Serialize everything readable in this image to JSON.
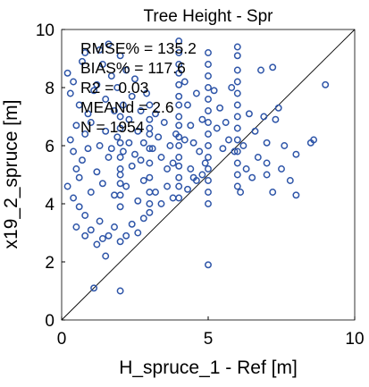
{
  "chart_data": {
    "type": "scatter",
    "title": "Tree Height - Spr",
    "xlabel": "H_spruce_1 - Ref [m]",
    "ylabel": "x19_2_spruce [m]",
    "xlim": [
      0,
      10
    ],
    "ylim": [
      0,
      10
    ],
    "xticks": [
      "0",
      "5",
      "10"
    ],
    "yticks": [
      "0",
      "2",
      "4",
      "6",
      "8",
      "10"
    ],
    "grid": false,
    "reference_line": "1:1",
    "marker_color": "#2E55A8",
    "stats": [
      "RMSE% = 135.2",
      "BIAS% = 117.6",
      "R2 = 0.03",
      "MEANd = 2.6",
      "N = 1954"
    ],
    "series": [
      {
        "points": [
          [
            0.2,
            8.5
          ],
          [
            0.3,
            7.8
          ],
          [
            0.4,
            8.2
          ],
          [
            0.5,
            6.7
          ],
          [
            0.6,
            7.4
          ],
          [
            0.7,
            8.9
          ],
          [
            0.8,
            9.2
          ],
          [
            0.9,
            7.1
          ],
          [
            0.3,
            6.2
          ],
          [
            0.4,
            5.8
          ],
          [
            0.5,
            5.2
          ],
          [
            0.6,
            4.9
          ],
          [
            0.7,
            5.5
          ],
          [
            0.8,
            6.4
          ],
          [
            0.9,
            5.9
          ],
          [
            1.0,
            6.8
          ],
          [
            0.2,
            4.6
          ],
          [
            0.4,
            4.2
          ],
          [
            0.6,
            3.9
          ],
          [
            0.8,
            3.6
          ],
          [
            1.0,
            4.4
          ],
          [
            0.5,
            3.2
          ],
          [
            0.8,
            2.9
          ],
          [
            1.0,
            3.1
          ],
          [
            1.1,
            1.1
          ],
          [
            1.2,
            2.6
          ],
          [
            1.3,
            3.4
          ],
          [
            1.4,
            2.8
          ],
          [
            1.5,
            2.2
          ],
          [
            1.6,
            2.9
          ],
          [
            1.8,
            3.2
          ],
          [
            2.0,
            2.7
          ],
          [
            2.0,
            1.0
          ],
          [
            2.2,
            2.9
          ],
          [
            2.4,
            3.3
          ],
          [
            2.6,
            3.0
          ],
          [
            2.8,
            3.5
          ],
          [
            3.0,
            3.7
          ],
          [
            1.1,
            7.9
          ],
          [
            1.2,
            8.1
          ],
          [
            1.3,
            9.3
          ],
          [
            1.4,
            8.8
          ],
          [
            1.5,
            7.6
          ],
          [
            1.6,
            9.5
          ],
          [
            1.7,
            8.4
          ],
          [
            1.8,
            7.2
          ],
          [
            1.9,
            8.0
          ],
          [
            2.0,
            9.1
          ],
          [
            2.1,
            7.4
          ],
          [
            2.2,
            8.6
          ],
          [
            2.3,
            6.9
          ],
          [
            2.4,
            7.7
          ],
          [
            2.5,
            8.3
          ],
          [
            2.6,
            6.5
          ],
          [
            2.7,
            7.2
          ],
          [
            2.8,
            6.1
          ],
          [
            2.9,
            7.8
          ],
          [
            3.0,
            6.6
          ],
          [
            3.1,
            5.9
          ],
          [
            3.2,
            7.1
          ],
          [
            3.3,
            6.3
          ],
          [
            3.4,
            5.6
          ],
          [
            3.5,
            6.8
          ],
          [
            3.6,
            5.2
          ],
          [
            3.7,
            6.0
          ],
          [
            3.8,
            5.4
          ],
          [
            3.9,
            6.4
          ],
          [
            1.2,
            5.1
          ],
          [
            1.4,
            4.7
          ],
          [
            1.6,
            5.6
          ],
          [
            1.8,
            4.3
          ],
          [
            2.0,
            5.0
          ],
          [
            2.2,
            4.6
          ],
          [
            2.4,
            5.3
          ],
          [
            2.6,
            4.1
          ],
          [
            2.8,
            4.8
          ],
          [
            3.2,
            4.4
          ],
          [
            3.4,
            4.0
          ],
          [
            3.6,
            4.6
          ],
          [
            3.8,
            4.2
          ],
          [
            1.3,
            6.0
          ],
          [
            1.5,
            6.5
          ],
          [
            1.7,
            5.9
          ],
          [
            1.9,
            6.3
          ],
          [
            2.1,
            5.8
          ],
          [
            2.3,
            6.1
          ],
          [
            2.5,
            5.7
          ],
          [
            2.7,
            5.5
          ],
          [
            4.0,
            9.6
          ],
          [
            4.0,
            9.2
          ],
          [
            4.0,
            8.8
          ],
          [
            4.0,
            8.5
          ],
          [
            4.0,
            8.1
          ],
          [
            4.0,
            7.7
          ],
          [
            4.0,
            7.4
          ],
          [
            4.0,
            7.0
          ],
          [
            4.0,
            6.7
          ],
          [
            4.0,
            6.3
          ],
          [
            4.0,
            6.0
          ],
          [
            4.0,
            5.6
          ],
          [
            4.0,
            5.3
          ],
          [
            4.0,
            4.9
          ],
          [
            4.0,
            4.6
          ],
          [
            4.0,
            4.2
          ],
          [
            5.0,
            9.2
          ],
          [
            5.0,
            8.8
          ],
          [
            5.0,
            8.4
          ],
          [
            5.0,
            8.0
          ],
          [
            5.0,
            7.6
          ],
          [
            5.0,
            7.2
          ],
          [
            5.0,
            6.8
          ],
          [
            5.0,
            6.4
          ],
          [
            5.0,
            6.0
          ],
          [
            5.0,
            5.6
          ],
          [
            5.0,
            5.2
          ],
          [
            5.0,
            4.8
          ],
          [
            5.0,
            4.4
          ],
          [
            5.0,
            4.0
          ],
          [
            5.0,
            1.9
          ],
          [
            3.0,
            7.4
          ],
          [
            3.0,
            6.9
          ],
          [
            3.0,
            6.4
          ],
          [
            3.0,
            5.9
          ],
          [
            3.0,
            5.4
          ],
          [
            3.0,
            4.9
          ],
          [
            3.0,
            4.4
          ],
          [
            3.0,
            4.0
          ],
          [
            2.0,
            7.0
          ],
          [
            2.0,
            6.6
          ],
          [
            2.0,
            6.1
          ],
          [
            2.0,
            5.6
          ],
          [
            2.0,
            5.2
          ],
          [
            2.0,
            4.7
          ],
          [
            2.0,
            4.3
          ],
          [
            2.0,
            3.9
          ],
          [
            4.2,
            8.2
          ],
          [
            4.3,
            7.4
          ],
          [
            4.4,
            6.7
          ],
          [
            4.5,
            6.1
          ],
          [
            4.6,
            7.8
          ],
          [
            4.7,
            5.8
          ],
          [
            4.8,
            6.9
          ],
          [
            4.9,
            5.4
          ],
          [
            4.2,
            6.2
          ],
          [
            4.4,
            5.2
          ],
          [
            4.6,
            4.8
          ],
          [
            4.8,
            5.0
          ],
          [
            4.3,
            4.5
          ],
          [
            4.5,
            4.9
          ],
          [
            5.2,
            7.9
          ],
          [
            5.3,
            6.6
          ],
          [
            5.4,
            7.3
          ],
          [
            5.5,
            5.9
          ],
          [
            5.6,
            6.8
          ],
          [
            5.7,
            6.2
          ],
          [
            5.8,
            8.0
          ],
          [
            5.9,
            5.8
          ],
          [
            6.0,
            9.4
          ],
          [
            6.0,
            9.1
          ],
          [
            6.0,
            8.6
          ],
          [
            6.0,
            8.2
          ],
          [
            6.0,
            7.8
          ],
          [
            6.0,
            7.4
          ],
          [
            6.0,
            7.0
          ],
          [
            6.0,
            6.6
          ],
          [
            6.0,
            6.2
          ],
          [
            6.0,
            5.8
          ],
          [
            6.0,
            5.4
          ],
          [
            6.0,
            5.0
          ],
          [
            6.0,
            4.6
          ],
          [
            6.2,
            6.0
          ],
          [
            6.4,
            7.1
          ],
          [
            6.6,
            6.5
          ],
          [
            6.8,
            8.6
          ],
          [
            6.9,
            7.0
          ],
          [
            7.0,
            6.1
          ],
          [
            7.2,
            8.7
          ],
          [
            7.3,
            6.9
          ],
          [
            7.0,
            5.4
          ],
          [
            7.0,
            5.0
          ],
          [
            7.2,
            4.4
          ],
          [
            7.5,
            5.2
          ],
          [
            7.8,
            4.8
          ],
          [
            8.0,
            4.3
          ],
          [
            8.0,
            5.7
          ],
          [
            8.5,
            6.1
          ],
          [
            8.6,
            6.2
          ],
          [
            9.0,
            8.1
          ],
          [
            6.5,
            4.9
          ],
          [
            6.7,
            5.6
          ],
          [
            7.4,
            7.3
          ],
          [
            7.6,
            6.0
          ],
          [
            6.3,
            5.2
          ],
          [
            6.1,
            4.4
          ]
        ]
      }
    ]
  }
}
